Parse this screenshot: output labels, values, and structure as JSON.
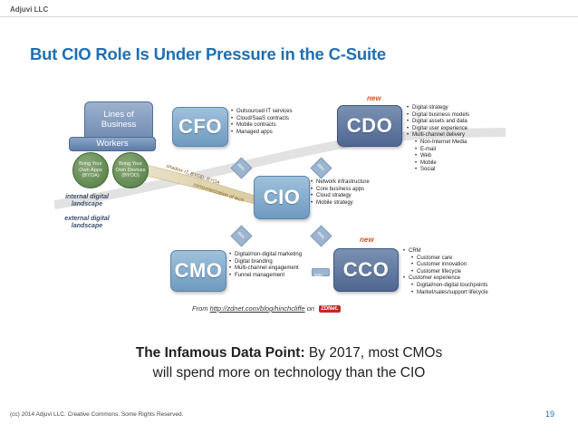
{
  "header": {
    "company": "Adjuvi LLC"
  },
  "slide": {
    "title": "But CIO Role Is Under Pressure in the C-Suite"
  },
  "diagram": {
    "lines_of_business": "Lines of Business",
    "workers": "Workers",
    "byoa": "Bring Your Own Apps (BYOA)",
    "byod": "Bring Your Own Devices (BYOD)",
    "internal_landscape": "internal digital landscape",
    "external_landscape": "external digital landscape",
    "arc_label_1": "shadow IT, BYOD, BYOA",
    "arc_label_2": "consumerization of tech",
    "new_label": "new",
    "boxes": {
      "cfo": "CFO",
      "cdo": "CDO",
      "cio": "CIO",
      "cmo": "CMO",
      "cco": "CCO"
    },
    "arrow_label": "data",
    "cfo_bullets": [
      "Outsourced IT services",
      "Cloud/SaaS contracts",
      "Mobile contracts",
      "Managed apps"
    ],
    "cdo_bullets": [
      "Digital strategy",
      "Digital business models",
      "Digital assets and data",
      "Digital user experience",
      "Multi-channel delivery"
    ],
    "cdo_sub_bullets": [
      "Non-Internet Media",
      "E-mail",
      "Web",
      "Mobile",
      "Social"
    ],
    "cio_bullets": [
      "Network infrastructure",
      "Core business apps",
      "Cloud strategy",
      "Mobile strategy"
    ],
    "cmo_bullets": [
      "Digital/non-digital marketing",
      "Digital branding",
      "Multi-channel engagement",
      "Funnel management"
    ],
    "cco_bullets_top": [
      "CRM"
    ],
    "cco_sub_1": [
      "Customer care",
      "Customer innovation",
      "Customer lifecycle"
    ],
    "cco_bullets_mid": [
      "Customer experience"
    ],
    "cco_sub_2": [
      "Digital/non-digital touchpoints",
      "Market/sales/support lifecycle"
    ],
    "source_prefix": "From",
    "source_url": "http://zdnet.com/blog/hinchcliffe",
    "source_on": "on",
    "source_logo": "ZDNet."
  },
  "quote": {
    "lead": "The Infamous Data Point:",
    "line1_rest": " By 2017, most CMOs",
    "line2": "will spend more on technology than the CIO"
  },
  "footer": {
    "copyright": "(cc) 2014 Adjuvi LLC. Creative Commons. Some Rights Reserved.",
    "page_number": "19"
  }
}
